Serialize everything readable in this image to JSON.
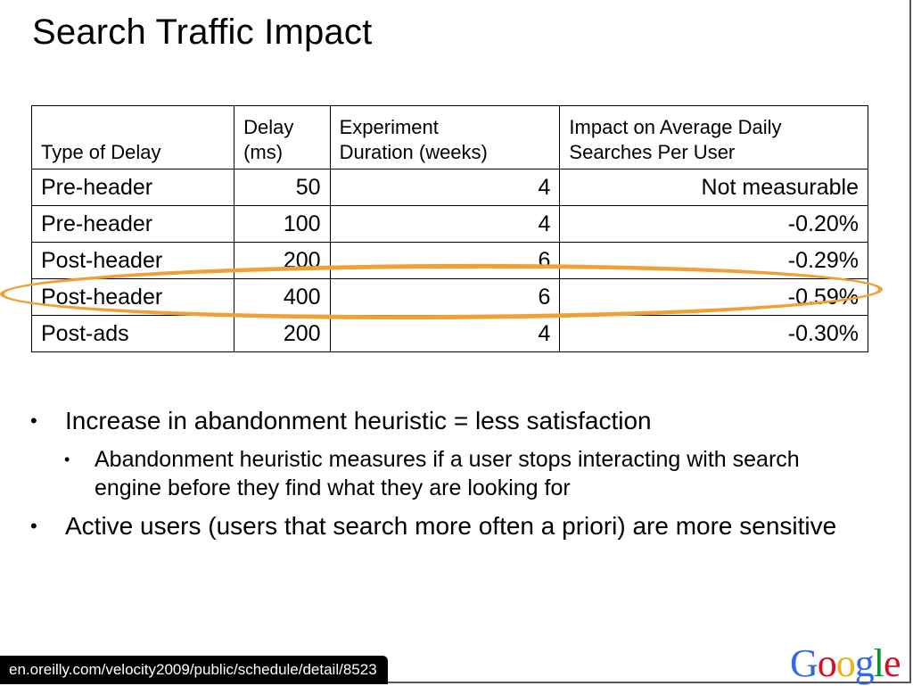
{
  "slide": {
    "title": "Search Traffic Impact"
  },
  "table": {
    "headers": [
      "Type of Delay",
      "Delay (ms)",
      "Experiment Duration (weeks)",
      "Impact on Average Daily Searches Per User"
    ],
    "header_lines": [
      [
        "",
        "Type of Delay"
      ],
      [
        "Delay",
        "(ms)"
      ],
      [
        "Experiment",
        "Duration (weeks)"
      ],
      [
        "Impact on Average Daily",
        "Searches Per User"
      ]
    ],
    "rows": [
      [
        "Pre-header",
        "50",
        "4",
        "Not measurable"
      ],
      [
        "Pre-header",
        "100",
        "4",
        "-0.20%"
      ],
      [
        "Post-header",
        "200",
        "6",
        "-0.29%"
      ],
      [
        "Post-header",
        "400",
        "6",
        "-0.59%"
      ],
      [
        "Post-ads",
        "200",
        "4",
        "-0.30%"
      ]
    ],
    "highlighted_row": 3,
    "highlight_color": "#f0a135"
  },
  "bullets": [
    {
      "text": "Increase in abandonment heuristic = less satisfaction",
      "children": [
        "Abandonment heuristic measures if a user stops interacting with search engine before they find what they are looking for"
      ]
    },
    {
      "text": "Active users (users that search more often a priori) are more sensitive",
      "children": []
    }
  ],
  "bullet_glyph": "•",
  "footer": {
    "url": "en.oreilly.com/velocity2009/public/schedule/detail/8523",
    "logo_letters": [
      {
        "ch": "G",
        "color": "#3369e8"
      },
      {
        "ch": "o",
        "color": "#d50f25"
      },
      {
        "ch": "o",
        "color": "#eeb211"
      },
      {
        "ch": "g",
        "color": "#3369e8"
      },
      {
        "ch": "l",
        "color": "#009925"
      },
      {
        "ch": "e",
        "color": "#d50f25"
      }
    ]
  }
}
